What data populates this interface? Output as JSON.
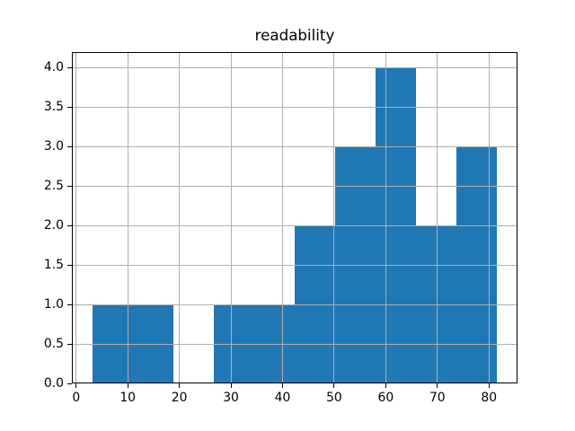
{
  "chart_data": {
    "type": "bar",
    "subtype": "histogram",
    "title": "readability",
    "bin_edges": [
      3.1,
      10.95,
      18.8,
      26.65,
      34.5,
      42.35,
      50.2,
      58.05,
      65.9,
      73.75,
      81.6
    ],
    "counts": [
      1,
      1,
      0,
      1,
      1,
      2,
      3,
      4,
      2,
      3
    ],
    "xlim": [
      -0.83,
      85.53
    ],
    "ylim": [
      0,
      4.2
    ],
    "xtick_values": [
      0,
      10,
      20,
      30,
      40,
      50,
      60,
      70,
      80
    ],
    "xtick_labels": [
      "0",
      "10",
      "20",
      "30",
      "40",
      "50",
      "60",
      "70",
      "80"
    ],
    "ytick_values": [
      0.0,
      0.5,
      1.0,
      1.5,
      2.0,
      2.5,
      3.0,
      3.5,
      4.0
    ],
    "ytick_labels": [
      "0.0",
      "0.5",
      "1.0",
      "1.5",
      "2.0",
      "2.5",
      "3.0",
      "3.5",
      "4.0"
    ],
    "xlabel": "",
    "ylabel": "",
    "grid": true,
    "grid_above_bars": true,
    "legend": "none",
    "bar_color": "#1f77b4",
    "grid_color": "#b0b0b0",
    "spine_color": "#000000",
    "text_color": "#000000",
    "background": "#ffffff"
  }
}
